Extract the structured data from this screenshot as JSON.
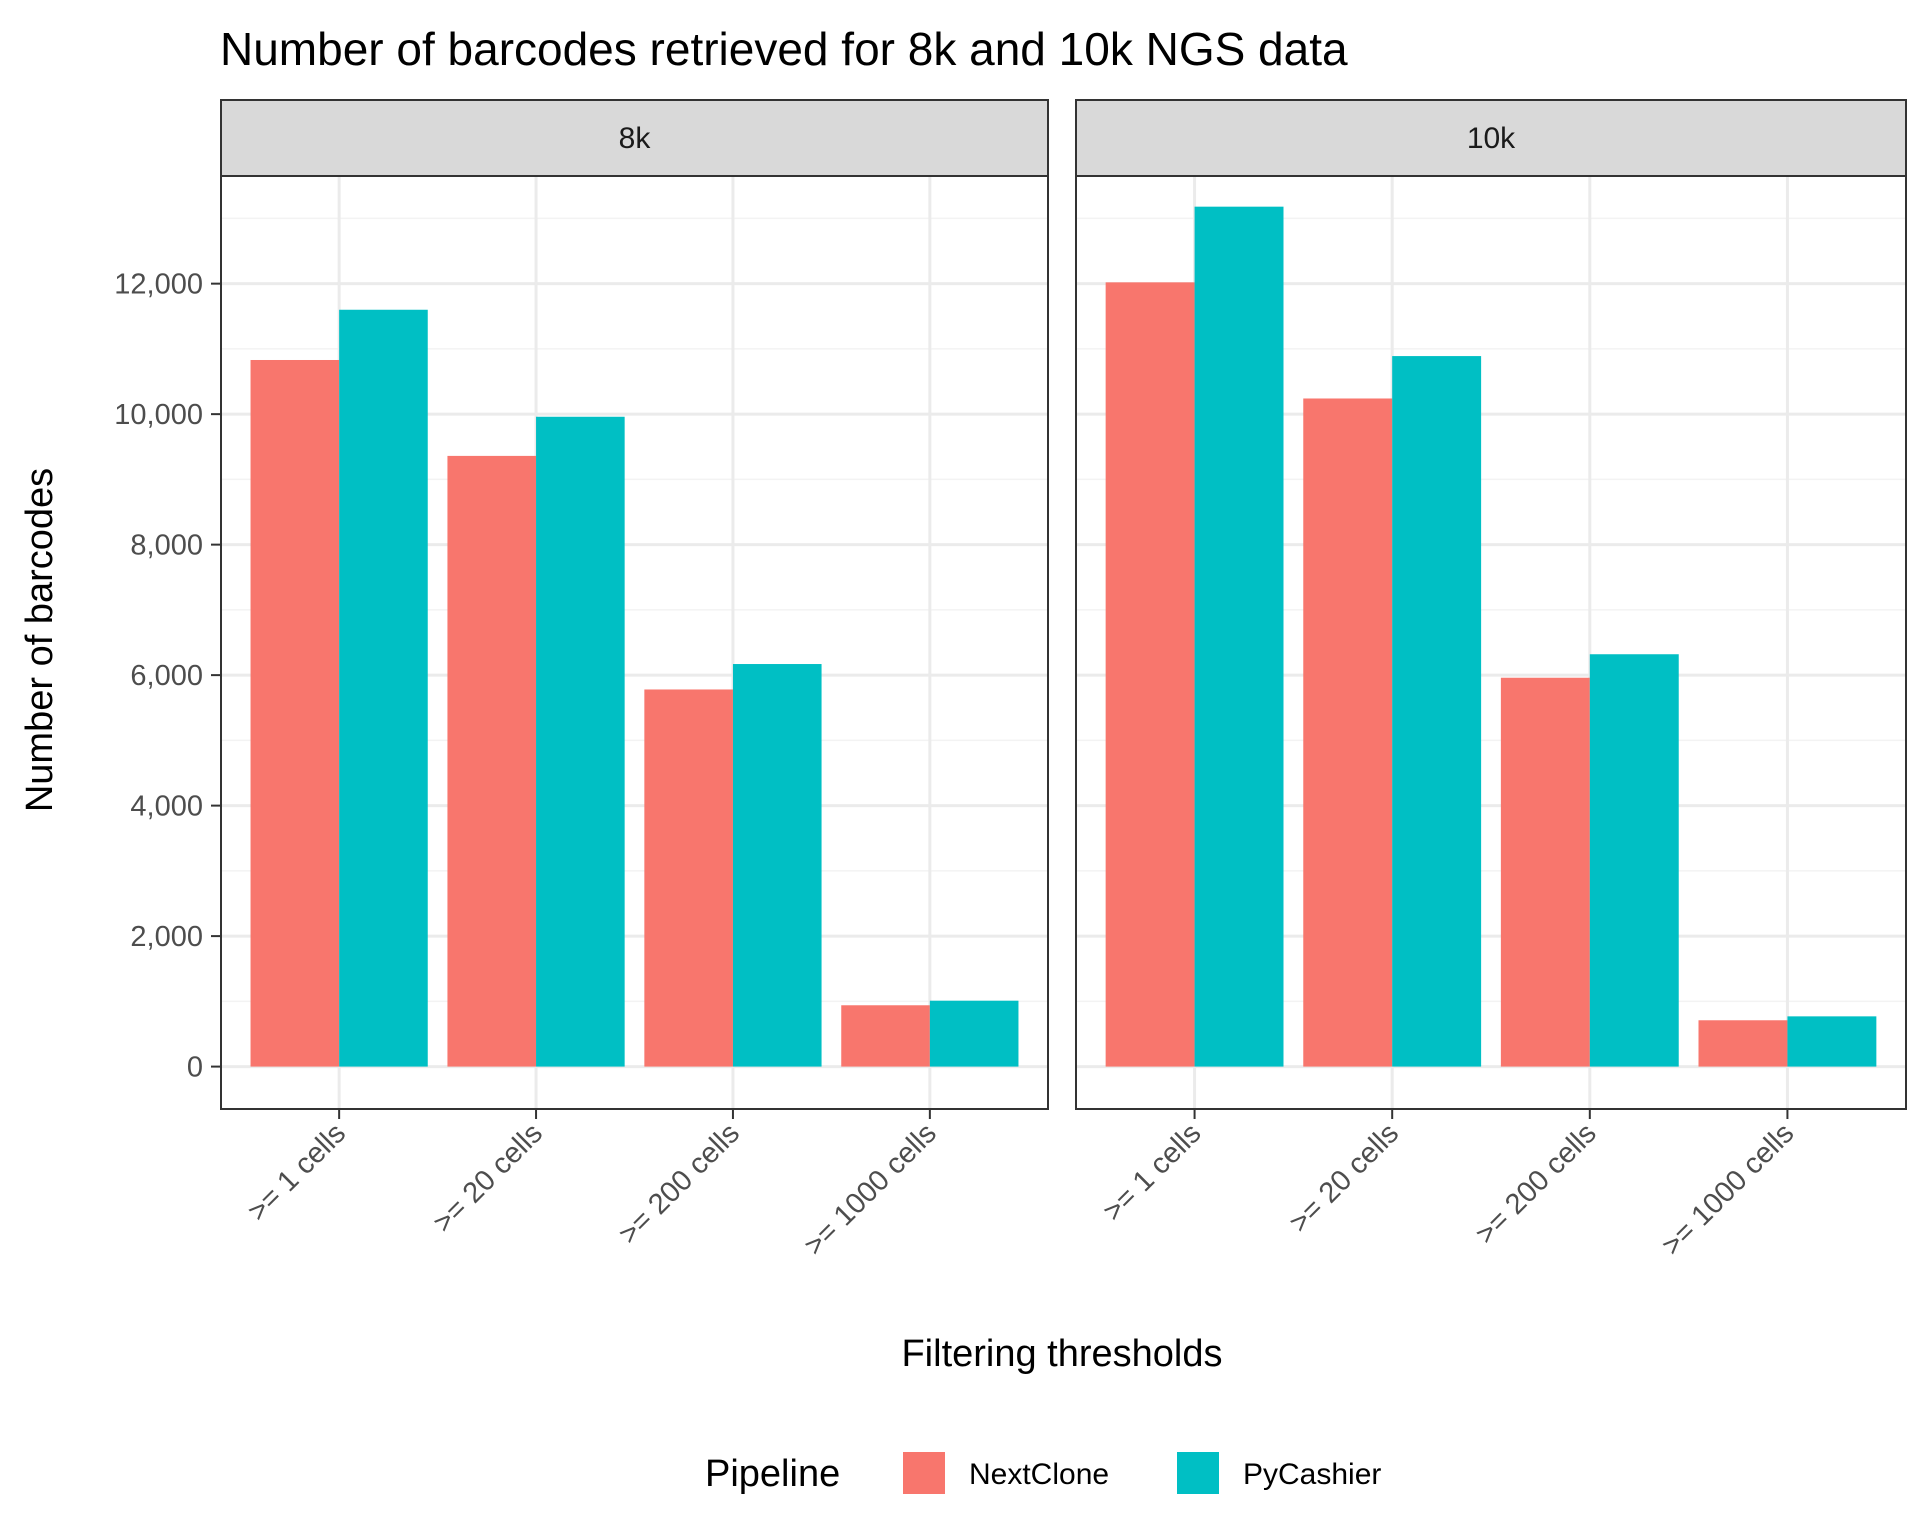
{
  "chart_data": {
    "type": "bar",
    "title": "Number of barcodes retrieved for 8k and 10k NGS data",
    "xlabel": "Filtering thresholds",
    "ylabel": "Number of barcodes",
    "categories": [
      ">= 1 cells",
      ">= 20 cells",
      ">= 200 cells",
      ">= 1000 cells"
    ],
    "y_ticks": [
      0,
      2000,
      4000,
      6000,
      8000,
      10000,
      12000
    ],
    "y_tick_labels": [
      "0",
      "2,000",
      "4,000",
      "6,000",
      "8,000",
      "10,000",
      "12,000"
    ],
    "ylim": [
      -650,
      13650
    ],
    "grid": true,
    "legend": {
      "title": "Pipeline",
      "position": "bottom",
      "items": [
        {
          "label": "NextClone",
          "color": "#F8766D"
        },
        {
          "label": "PyCashier",
          "color": "#00BFC4"
        }
      ]
    },
    "panels": [
      {
        "label": "8k",
        "series": [
          {
            "name": "NextClone",
            "values": [
              10830,
              9360,
              5780,
              940
            ]
          },
          {
            "name": "PyCashier",
            "values": [
              11600,
              9960,
              6170,
              1010
            ]
          }
        ]
      },
      {
        "label": "10k",
        "series": [
          {
            "name": "NextClone",
            "values": [
              12020,
              10240,
              5960,
              710
            ]
          },
          {
            "name": "PyCashier",
            "values": [
              13180,
              10890,
              6320,
              770
            ]
          }
        ]
      }
    ]
  },
  "colors": {
    "nextclone": "#F8766D",
    "pycashier": "#00BFC4",
    "grid_major": "#EBEBEB",
    "grid_minor": "#F3F3F3",
    "strip_fill": "#D9D9D9",
    "panel_border": "#333333"
  }
}
